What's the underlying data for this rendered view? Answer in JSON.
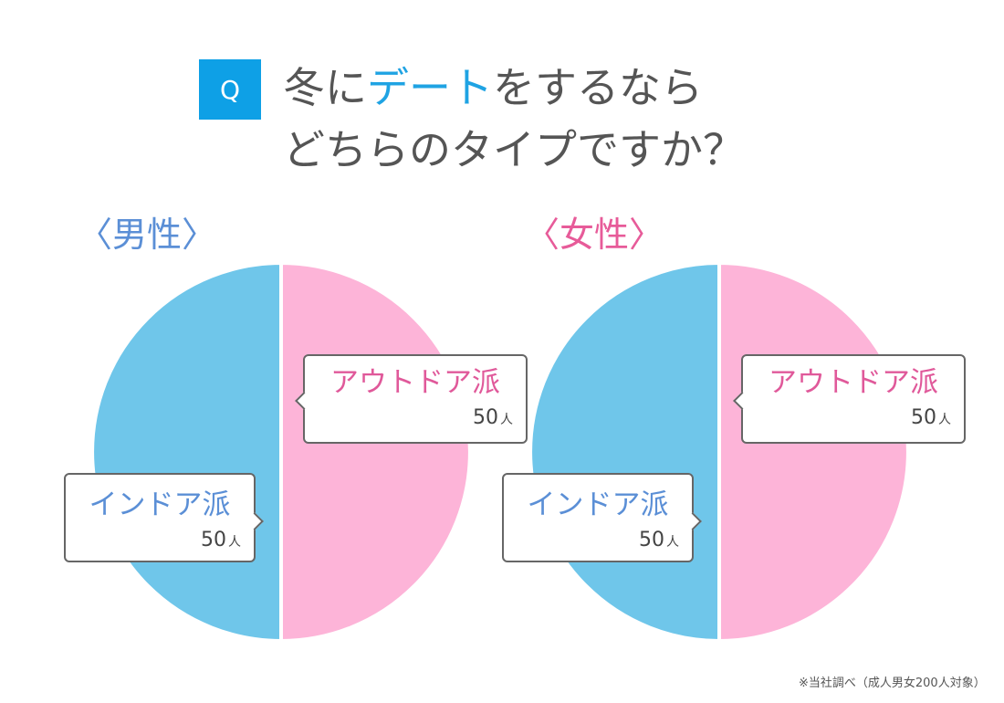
{
  "question": {
    "badge": "Q",
    "line1_a": "冬に",
    "line1_accent": "デート",
    "line1_b": "をするなら",
    "line2": "どちらのタイプですか？"
  },
  "colors": {
    "outdoor": "#fdb4d8",
    "indoor": "#6fc6ea",
    "badge": "#0ea0e6"
  },
  "chart_data": [
    {
      "type": "pie",
      "title": "〈男性〉",
      "series": [
        {
          "name": "アウトドア派",
          "value": 50,
          "unit": "人"
        },
        {
          "name": "インドア派",
          "value": 50,
          "unit": "人"
        }
      ]
    },
    {
      "type": "pie",
      "title": "〈女性〉",
      "series": [
        {
          "name": "アウトドア派",
          "value": 50,
          "unit": "人"
        },
        {
          "name": "インドア派",
          "value": 50,
          "unit": "人"
        }
      ]
    }
  ],
  "footnote": "※当社調べ（成人男女200人対象）"
}
